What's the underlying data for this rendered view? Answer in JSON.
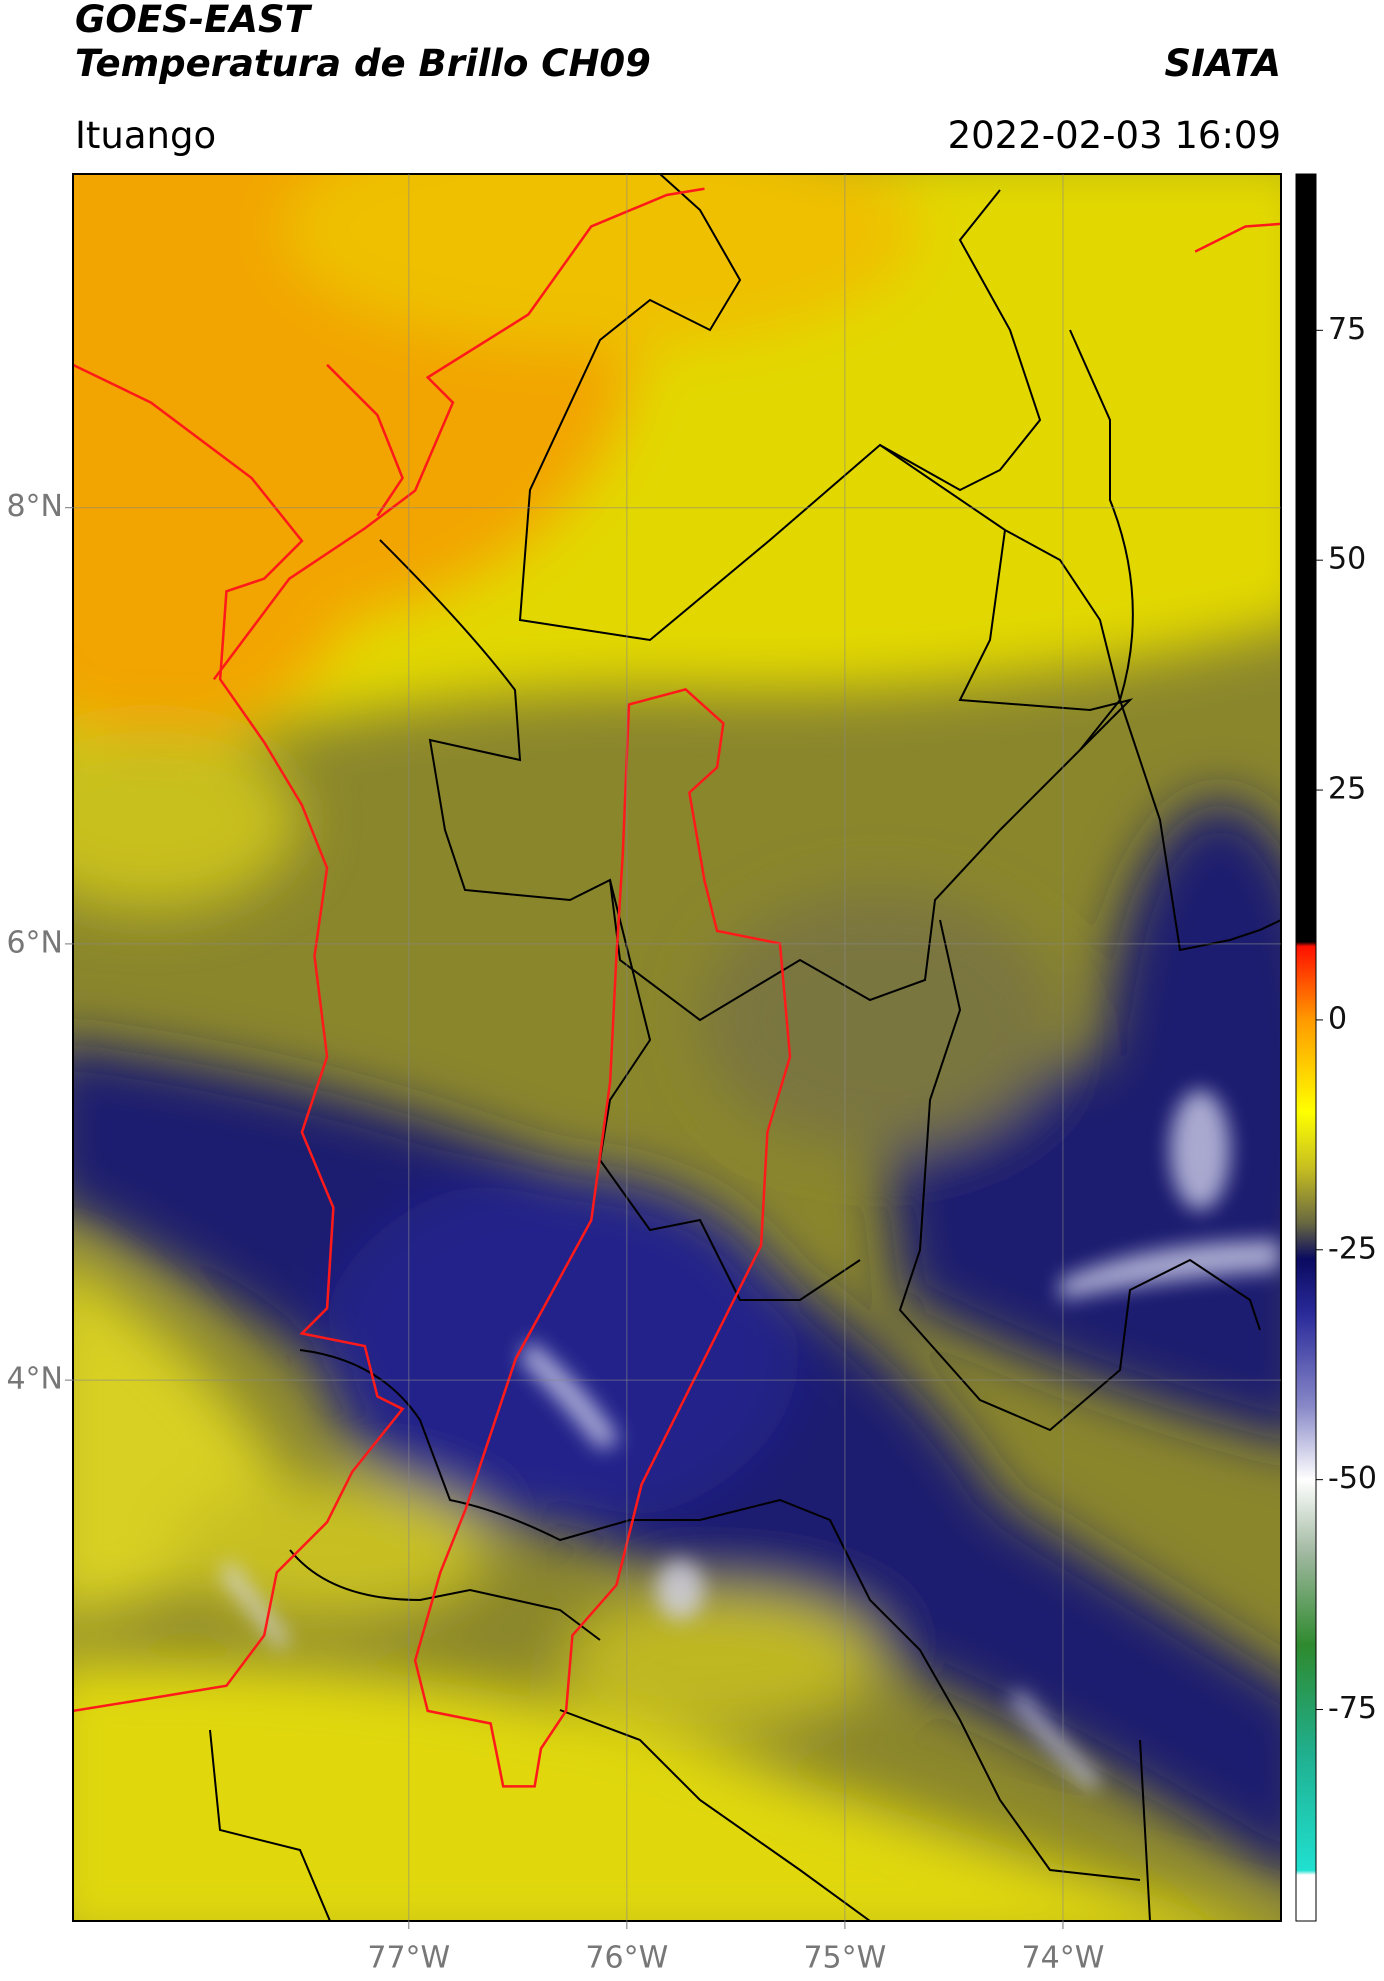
{
  "header": {
    "title": "GOES-EAST",
    "subtitle": "Temperatura de Brillo CH09",
    "credit": "SIATA",
    "location": "Ituango",
    "timestamp": "2022-02-03 16:09"
  },
  "map": {
    "type": "map",
    "xlim": [
      -78.54,
      -73.0
    ],
    "ylim": [
      1.52,
      9.53
    ],
    "xticks": [
      {
        "value": -77,
        "label": "77°W"
      },
      {
        "value": -76,
        "label": "76°W"
      },
      {
        "value": -75,
        "label": "75°W"
      },
      {
        "value": -74,
        "label": "74°W"
      }
    ],
    "yticks": [
      {
        "value": 4,
        "label": "4°N"
      },
      {
        "value": 6,
        "label": "6°N"
      },
      {
        "value": 8,
        "label": "8°N"
      }
    ],
    "grid": true
  },
  "colorbar": {
    "clim": [
      -98,
      92
    ],
    "ticks": [
      -75,
      -50,
      -25,
      0,
      25,
      50,
      75
    ],
    "stops": [
      {
        "value": -98,
        "color": "#ffffff"
      },
      {
        "value": -93,
        "color": "#ffffff"
      },
      {
        "value": -92.5,
        "color": "#20e0d0"
      },
      {
        "value": -80,
        "color": "#20b090"
      },
      {
        "value": -68,
        "color": "#2e8a2e"
      },
      {
        "value": -58,
        "color": "#a0b8a0"
      },
      {
        "value": -50,
        "color": "#ffffff"
      },
      {
        "value": -42,
        "color": "#8888c8"
      },
      {
        "value": -32,
        "color": "#2a2a9a"
      },
      {
        "value": -26,
        "color": "#0a0a60"
      },
      {
        "value": -22,
        "color": "#6a6a40"
      },
      {
        "value": -16,
        "color": "#c8c020"
      },
      {
        "value": -10,
        "color": "#ffff00"
      },
      {
        "value": 0,
        "color": "#ff9a00"
      },
      {
        "value": 8,
        "color": "#ff1000"
      },
      {
        "value": 8.5,
        "color": "#000000"
      },
      {
        "value": 92,
        "color": "#000000"
      }
    ]
  }
}
